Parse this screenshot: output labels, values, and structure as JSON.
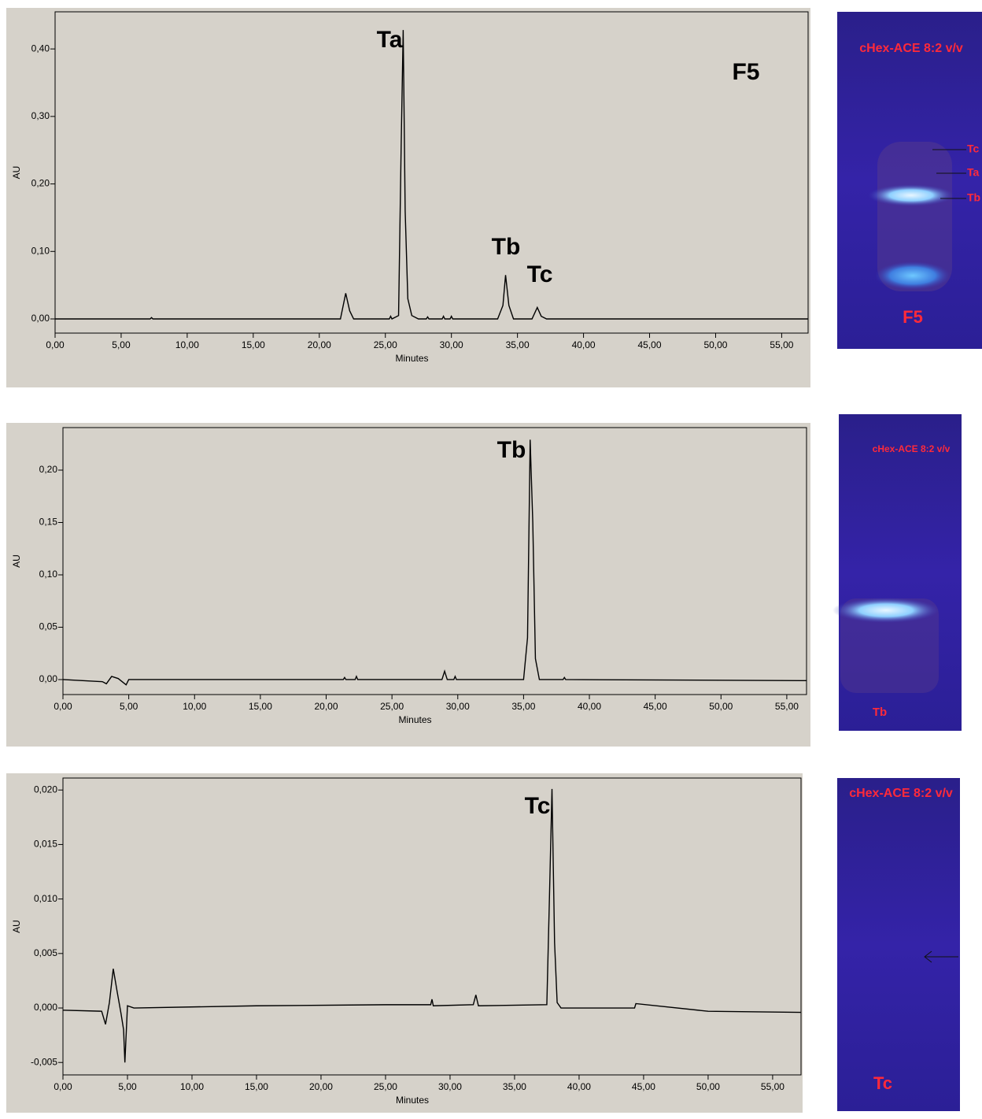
{
  "chart_data": [
    {
      "type": "line",
      "ylabel": "AU",
      "xlabel": "Minutes",
      "color": "#000000",
      "xlim": [
        0,
        57
      ],
      "ylim": [
        -0.021,
        0.455
      ],
      "xticks": [
        {
          "value": 0,
          "label": "0,00"
        },
        {
          "value": 5,
          "label": "5,00"
        },
        {
          "value": 10,
          "label": "10,00"
        },
        {
          "value": 15,
          "label": "15,00"
        },
        {
          "value": 20,
          "label": "20,00"
        },
        {
          "value": 25,
          "label": "25,00"
        },
        {
          "value": 30,
          "label": "30,00"
        },
        {
          "value": 35,
          "label": "35,00"
        },
        {
          "value": 40,
          "label": "40,00"
        },
        {
          "value": 45,
          "label": "45,00"
        },
        {
          "value": 50,
          "label": "50,00"
        },
        {
          "value": 55,
          "label": "55,00"
        }
      ],
      "yticks": [
        {
          "value": 0,
          "label": "0,00"
        },
        {
          "value": 0.1,
          "label": "0,10"
        },
        {
          "value": 0.2,
          "label": "0,20"
        },
        {
          "value": 0.3,
          "label": "0,30"
        },
        {
          "value": 0.4,
          "label": "0,40"
        }
      ],
      "x": [
        0,
        7.2,
        7.3,
        7.4,
        21.6,
        22.0,
        22.3,
        22.6,
        25.3,
        25.4,
        25.5,
        26.0,
        26.2,
        26.35,
        26.5,
        26.7,
        27.0,
        27.5,
        28.1,
        28.2,
        28.3,
        29.3,
        29.4,
        29.5,
        29.9,
        30.0,
        30.1,
        33.5,
        33.9,
        34.1,
        34.35,
        34.7,
        36.1,
        36.5,
        36.8,
        37.2,
        57
      ],
      "values": [
        0,
        0,
        0.002,
        0,
        0,
        0.038,
        0.012,
        0,
        0,
        0.004,
        0,
        0.005,
        0.26,
        0.428,
        0.16,
        0.03,
        0.005,
        0,
        0,
        0.003,
        0,
        0,
        0.004,
        0,
        0,
        0.004,
        0,
        0,
        0.02,
        0.065,
        0.02,
        0,
        0,
        0.017,
        0.004,
        0,
        0
      ],
      "annotations": [
        "Ta",
        "Tb",
        "Tc",
        "F5"
      ]
    },
    {
      "type": "line",
      "ylabel": "AU",
      "xlabel": "Minutes",
      "color": "#000000",
      "xlim": [
        0,
        56.5
      ],
      "ylim": [
        -0.0143,
        0.2406
      ],
      "xticks": [
        {
          "value": 0,
          "label": "0,00"
        },
        {
          "value": 5,
          "label": "5,00"
        },
        {
          "value": 10,
          "label": "10,00"
        },
        {
          "value": 15,
          "label": "15,00"
        },
        {
          "value": 20,
          "label": "20,00"
        },
        {
          "value": 25,
          "label": "25,00"
        },
        {
          "value": 30,
          "label": "30,00"
        },
        {
          "value": 35,
          "label": "35,00"
        },
        {
          "value": 40,
          "label": "40,00"
        },
        {
          "value": 45,
          "label": "45,00"
        },
        {
          "value": 50,
          "label": "50,00"
        },
        {
          "value": 55,
          "label": "55,00"
        }
      ],
      "yticks": [
        {
          "value": 0,
          "label": "0,00"
        },
        {
          "value": 0.05,
          "label": "0,05"
        },
        {
          "value": 0.1,
          "label": "0,10"
        },
        {
          "value": 0.15,
          "label": "0,15"
        },
        {
          "value": 0.2,
          "label": "0,20"
        }
      ],
      "x": [
        0,
        1.5,
        3.0,
        3.3,
        3.7,
        4.2,
        4.8,
        5.0,
        21.3,
        21.4,
        21.5,
        22.2,
        22.3,
        22.4,
        28.8,
        29.0,
        29.2,
        29.7,
        29.8,
        29.9,
        35.0,
        35.3,
        35.5,
        35.7,
        35.9,
        36.2,
        38.0,
        38.1,
        38.2,
        56.5
      ],
      "values": [
        0,
        -0.001,
        -0.002,
        -0.004,
        0.003,
        0.001,
        -0.005,
        0,
        0,
        0.002,
        0,
        0,
        0.003,
        0,
        0,
        0.008,
        0,
        0,
        0.003,
        0,
        0,
        0.04,
        0.229,
        0.15,
        0.02,
        0,
        0,
        0.002,
        0,
        -0.001
      ],
      "annotations": [
        "Tb"
      ]
    },
    {
      "type": "line",
      "ylabel": "AU",
      "xlabel": "Minutes",
      "color": "#000000",
      "xlim": [
        0,
        57.2
      ],
      "ylim": [
        -0.00614,
        0.0211
      ],
      "xticks": [
        {
          "value": 0,
          "label": "0,00"
        },
        {
          "value": 5,
          "label": "5,00"
        },
        {
          "value": 10,
          "label": "10,00"
        },
        {
          "value": 15,
          "label": "15,00"
        },
        {
          "value": 20,
          "label": "20,00"
        },
        {
          "value": 25,
          "label": "25,00"
        },
        {
          "value": 30,
          "label": "30,00"
        },
        {
          "value": 35,
          "label": "35,00"
        },
        {
          "value": 40,
          "label": "40,00"
        },
        {
          "value": 45,
          "label": "45,00"
        },
        {
          "value": 50,
          "label": "50,00"
        },
        {
          "value": 55,
          "label": "55,00"
        }
      ],
      "yticks": [
        {
          "value": -0.005,
          "label": "-0,005"
        },
        {
          "value": 0,
          "label": "0,000"
        },
        {
          "value": 0.005,
          "label": "0,005"
        },
        {
          "value": 0.01,
          "label": "0,010"
        },
        {
          "value": 0.015,
          "label": "0,015"
        },
        {
          "value": 0.02,
          "label": "0,020"
        }
      ],
      "x": [
        0,
        3.0,
        3.3,
        3.6,
        3.9,
        4.2,
        4.5,
        4.7,
        4.8,
        5.0,
        5.5,
        15,
        25,
        28.5,
        28.6,
        28.7,
        31.8,
        32.0,
        32.2,
        37.5,
        37.7,
        37.9,
        38.1,
        38.3,
        38.6,
        44.3,
        44.4,
        50,
        57.2
      ],
      "values": [
        -0.0002,
        -0.0003,
        -0.0015,
        0.0005,
        0.0036,
        0.0015,
        -0.0005,
        -0.002,
        -0.005,
        0.0002,
        0.0,
        0.0002,
        0.0003,
        0.0003,
        0.0008,
        0.0002,
        0.0003,
        0.0012,
        0.0002,
        0.0003,
        0.01,
        0.0201,
        0.006,
        0.0005,
        0.0,
        0.0,
        0.0004,
        -0.0003,
        -0.0004
      ],
      "annotations": [
        "Tc"
      ]
    }
  ],
  "tlc_panels": [
    {
      "solvent": "cHex-ACE 8:2 v/v",
      "spots": [
        "Tc",
        "Ta",
        "Tb"
      ],
      "sample": "F5"
    },
    {
      "solvent": "cHex-ACE 8:2 v/v",
      "sample": "Tb"
    },
    {
      "solvent": "cHex-ACE 8:2 v/v",
      "sample": "Tc"
    }
  ]
}
